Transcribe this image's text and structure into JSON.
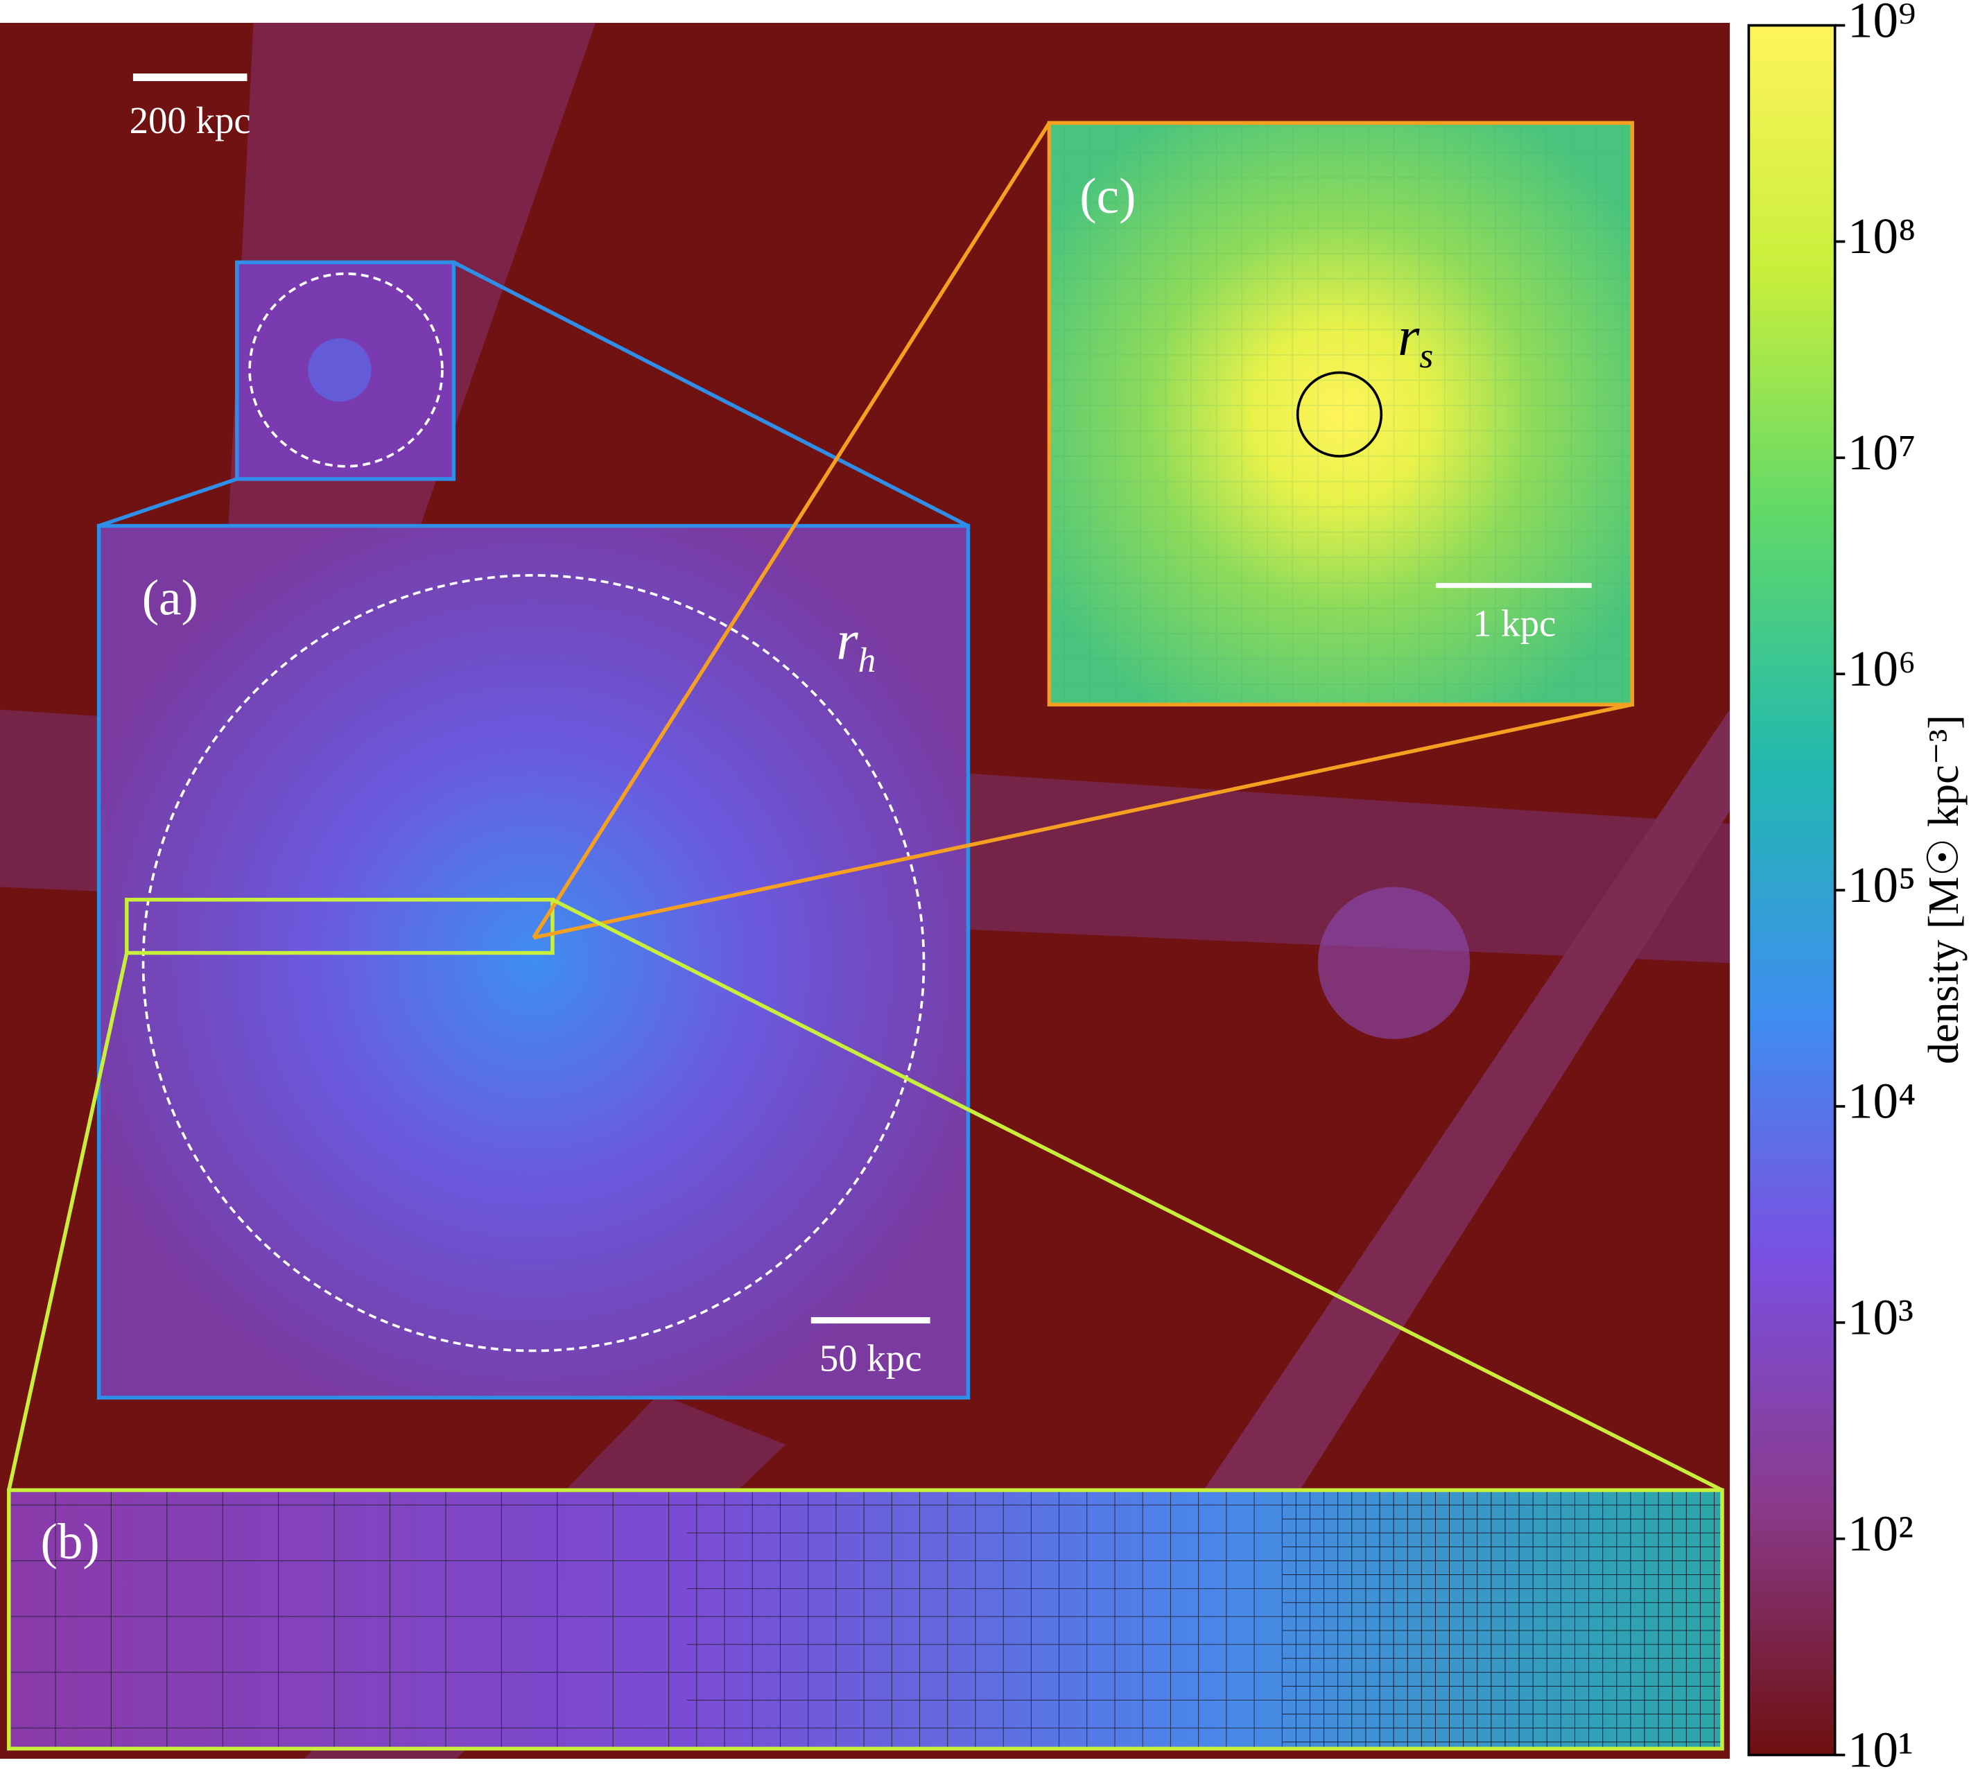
{
  "scale_bars": [
    "200 kpc",
    "50 kpc",
    "1 kpc"
  ],
  "panels": {
    "a": {
      "label": "(a)",
      "radius_label": "r",
      "radius_sub": "h"
    },
    "b": {
      "label": "(b)"
    },
    "c": {
      "label": "(c)",
      "radius_label": "r",
      "radius_sub": "s"
    }
  },
  "colorbar": {
    "label": "density [M☉ kpc⁻³]",
    "log": true,
    "ylim": [
      10,
      1000000000
    ],
    "colors": [
      "#6e1010",
      "#8a3a8a",
      "#7b4fe0",
      "#3f8ef0",
      "#22b8b0",
      "#5fd86a",
      "#c8ef3c",
      "#fff45a"
    ],
    "yticks": [
      {
        "value": 10,
        "label": "10¹"
      },
      {
        "value": 100,
        "label": "10²"
      },
      {
        "value": 1000,
        "label": "10³"
      },
      {
        "value": 10000,
        "label": "10⁴"
      },
      {
        "value": 100000,
        "label": "10⁵"
      },
      {
        "value": 1000000,
        "label": "10⁶"
      },
      {
        "value": 10000000,
        "label": "10⁷"
      },
      {
        "value": 100000000,
        "label": "10⁸"
      },
      {
        "value": 1000000000,
        "label": "10⁹"
      }
    ]
  }
}
